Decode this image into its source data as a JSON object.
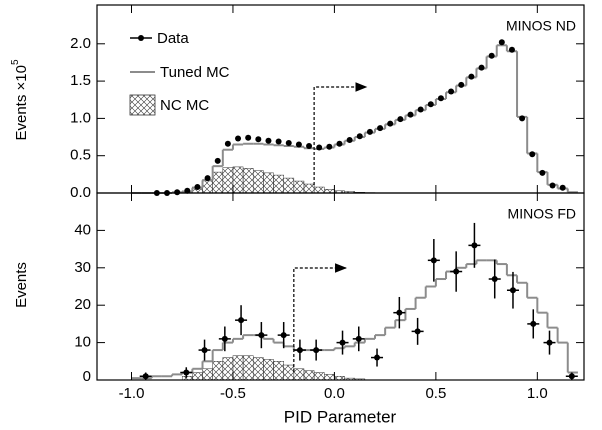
{
  "chart_data": [
    {
      "type": "histogram",
      "text": "MINOS ND",
      "ylabel": "Events ×10",
      "ylabel_exponent": "5",
      "bins": [
        -1.0,
        -0.95,
        -0.9,
        -0.85,
        -0.8,
        -0.75,
        -0.7,
        -0.65,
        -0.6,
        -0.55,
        -0.5,
        -0.45,
        -0.4,
        -0.35,
        -0.3,
        -0.25,
        -0.2,
        -0.15,
        -0.1,
        -0.05,
        0.0,
        0.05,
        0.1,
        0.15,
        0.2,
        0.25,
        0.3,
        0.35,
        0.4,
        0.45,
        0.5,
        0.55,
        0.6,
        0.65,
        0.7,
        0.75,
        0.8,
        0.85,
        0.9,
        0.95,
        1.0,
        1.05,
        1.1,
        1.15,
        1.2
      ],
      "xlim": [
        -1.17,
        1.23
      ],
      "ylim": [
        0,
        2.52
      ],
      "yticks": [
        {
          "value": 0,
          "label": "0.0"
        },
        0.5,
        {
          "value": 1,
          "label": "1.0"
        },
        1.5,
        {
          "value": 2,
          "label": "2.0"
        }
      ],
      "cut": -0.1,
      "legend": "upper left",
      "series": [
        {
          "name": "Data",
          "color": "#000000",
          "style": "points",
          "values": [
            null,
            null,
            0,
            0,
            0.01,
            0.03,
            0.08,
            0.2,
            0.43,
            0.66,
            0.73,
            0.74,
            0.72,
            0.7,
            0.69,
            0.67,
            0.65,
            0.63,
            0.61,
            0.62,
            0.66,
            0.71,
            0.76,
            0.82,
            0.87,
            0.93,
            0.99,
            1.05,
            1.12,
            1.19,
            1.27,
            1.36,
            1.45,
            1.56,
            1.68,
            1.84,
            2.02,
            1.92,
            1.0,
            0.52,
            0.27,
            0.1,
            0.07,
            null
          ]
        },
        {
          "name": "Tuned MC",
          "color": "#8c8c8c",
          "style": "step",
          "values": [
            0,
            0,
            0,
            0,
            0.01,
            0.02,
            0.07,
            0.17,
            0.36,
            0.58,
            0.65,
            0.66,
            0.66,
            0.65,
            0.64,
            0.63,
            0.62,
            0.6,
            0.59,
            0.61,
            0.65,
            0.7,
            0.75,
            0.81,
            0.86,
            0.92,
            0.98,
            1.04,
            1.11,
            1.18,
            1.26,
            1.35,
            1.44,
            1.55,
            1.67,
            1.83,
            1.98,
            1.9,
            1.02,
            0.53,
            0.28,
            0.11,
            0.06,
            0.01
          ]
        },
        {
          "name": "NC MC",
          "color": "#333333",
          "style": "hatched",
          "values": [
            0,
            0,
            0,
            0,
            0.01,
            0.03,
            0.08,
            0.18,
            0.28,
            0.34,
            0.35,
            0.33,
            0.3,
            0.27,
            0.24,
            0.2,
            0.16,
            0.12,
            0.08,
            0.05,
            0.03,
            0.02,
            0.01,
            0.005,
            0,
            0,
            0,
            0,
            0,
            0,
            0,
            0,
            0,
            0,
            0,
            0,
            0,
            0,
            0,
            0,
            0,
            0,
            0,
            0
          ]
        }
      ]
    },
    {
      "type": "histogram",
      "text": "MINOS FD",
      "ylabel": "Events",
      "xlabel": "PID Parameter",
      "bins": [
        -1.0,
        -0.95,
        -0.9,
        -0.85,
        -0.8,
        -0.75,
        -0.7,
        -0.65,
        -0.6,
        -0.55,
        -0.5,
        -0.45,
        -0.4,
        -0.35,
        -0.3,
        -0.25,
        -0.2,
        -0.15,
        -0.1,
        -0.05,
        0.0,
        0.05,
        0.1,
        0.15,
        0.2,
        0.25,
        0.3,
        0.35,
        0.4,
        0.45,
        0.5,
        0.55,
        0.6,
        0.65,
        0.7,
        0.75,
        0.8,
        0.85,
        0.9,
        0.95,
        1.0,
        1.05,
        1.1,
        1.15,
        1.2
      ],
      "xlim": [
        -1.17,
        1.23
      ],
      "ylim": [
        0,
        50
      ],
      "xticks": [
        {
          "value": -1,
          "label": "-1.0"
        },
        -0.5,
        {
          "value": 0,
          "label": "0.0"
        },
        0.5,
        {
          "value": 1,
          "label": "1.0"
        }
      ],
      "yticks": [
        0,
        10,
        20,
        30,
        40
      ],
      "cut": -0.2,
      "series": [
        {
          "color": "#000000",
          "style": "points",
          "x": [
            -0.93,
            -0.73,
            -0.64,
            -0.54,
            -0.46,
            -0.36,
            -0.25,
            -0.17,
            -0.09,
            0.04,
            0.12,
            0.21,
            0.32,
            0.41,
            0.49,
            0.6,
            0.69,
            0.79,
            0.88,
            0.98,
            1.06,
            1.17
          ],
          "values": [
            1,
            2,
            8,
            11,
            16,
            12,
            12,
            8,
            8,
            10,
            11,
            6,
            18,
            13,
            32,
            29,
            36,
            27,
            24,
            15,
            10,
            1
          ],
          "errors": [
            1,
            1.4,
            2.8,
            3.3,
            4,
            3.5,
            3.5,
            2.8,
            2.8,
            3.2,
            3.3,
            2.4,
            4.2,
            3.6,
            5.7,
            5.4,
            6,
            5.2,
            4.9,
            3.9,
            3.2,
            1
          ]
        },
        {
          "color": "#8c8c8c",
          "style": "step",
          "values": [
            0.5,
            0.5,
            1,
            1,
            1.5,
            2,
            3,
            5,
            8,
            10,
            11,
            12,
            12,
            11,
            10,
            9,
            8,
            8,
            8,
            8,
            8.5,
            9,
            10,
            11,
            12,
            14,
            16,
            19,
            22,
            25,
            27,
            29,
            30,
            31,
            32,
            32,
            31,
            28,
            26,
            22,
            18,
            14,
            10,
            2
          ]
        },
        {
          "color": "#333333",
          "style": "hatched",
          "values": [
            0,
            0,
            0,
            0,
            0,
            1,
            2,
            3,
            5,
            6,
            6.5,
            6.5,
            6,
            5.5,
            5,
            4,
            3,
            2.5,
            2,
            1.5,
            1,
            0.5,
            0.3,
            0,
            0,
            0,
            0,
            0,
            0,
            0,
            0,
            0,
            0,
            0,
            0,
            0,
            0,
            0,
            0,
            0,
            0,
            0,
            0,
            0
          ]
        }
      ]
    }
  ]
}
